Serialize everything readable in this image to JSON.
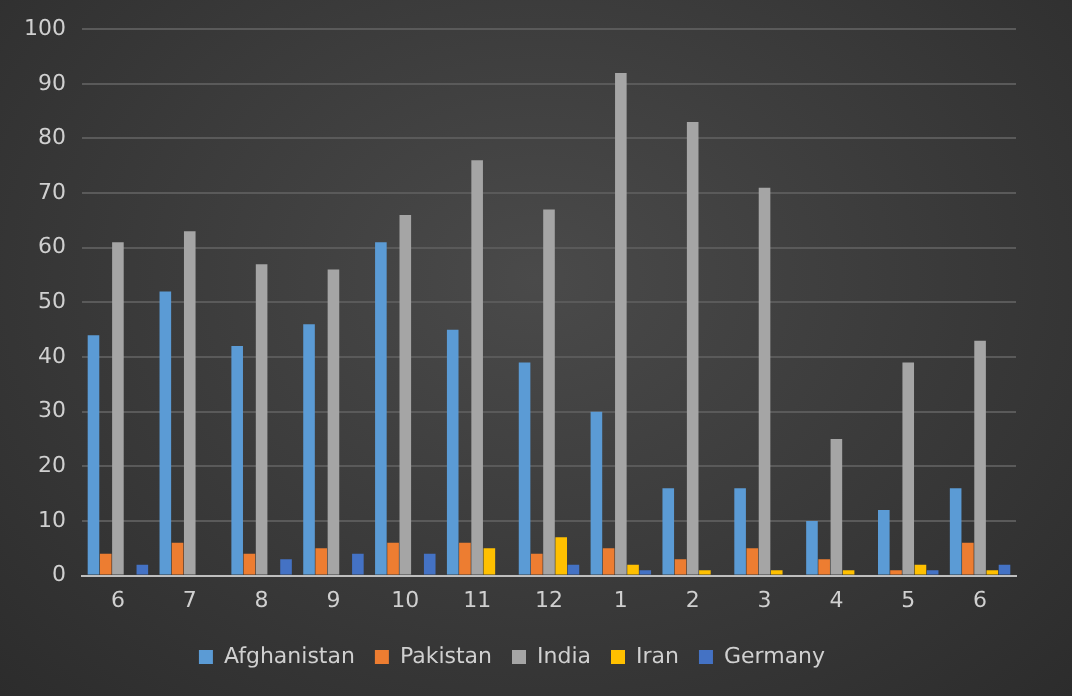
{
  "chart_data": {
    "type": "bar",
    "categories": [
      "6",
      "7",
      "8",
      "9",
      "10",
      "11",
      "12",
      "1",
      "2",
      "3",
      "4",
      "5",
      "6"
    ],
    "series": [
      {
        "name": "Afghanistan",
        "color": "#5b9bd5",
        "values": [
          44,
          52,
          42,
          46,
          61,
          45,
          39,
          30,
          16,
          16,
          10,
          12,
          16
        ]
      },
      {
        "name": "Pakistan",
        "color": "#ed7d31",
        "values": [
          4,
          6,
          4,
          5,
          6,
          6,
          4,
          5,
          3,
          5,
          3,
          1,
          6
        ]
      },
      {
        "name": "India",
        "color": "#a5a5a5",
        "values": [
          61,
          63,
          57,
          56,
          66,
          76,
          67,
          92,
          83,
          71,
          25,
          39,
          43
        ]
      },
      {
        "name": "Iran",
        "color": "#ffc000",
        "values": [
          0,
          0,
          0,
          0,
          0,
          5,
          7,
          2,
          1,
          1,
          1,
          2,
          1
        ]
      },
      {
        "name": "Germany",
        "color": "#4472c4",
        "values": [
          2,
          0,
          3,
          4,
          4,
          0,
          2,
          1,
          0,
          0,
          0,
          1,
          2
        ]
      }
    ],
    "ylim": [
      0,
      100
    ],
    "yticks": [
      0,
      10,
      20,
      30,
      40,
      50,
      60,
      70,
      80,
      90,
      100
    ],
    "grid": "y",
    "legend": "bottom"
  }
}
